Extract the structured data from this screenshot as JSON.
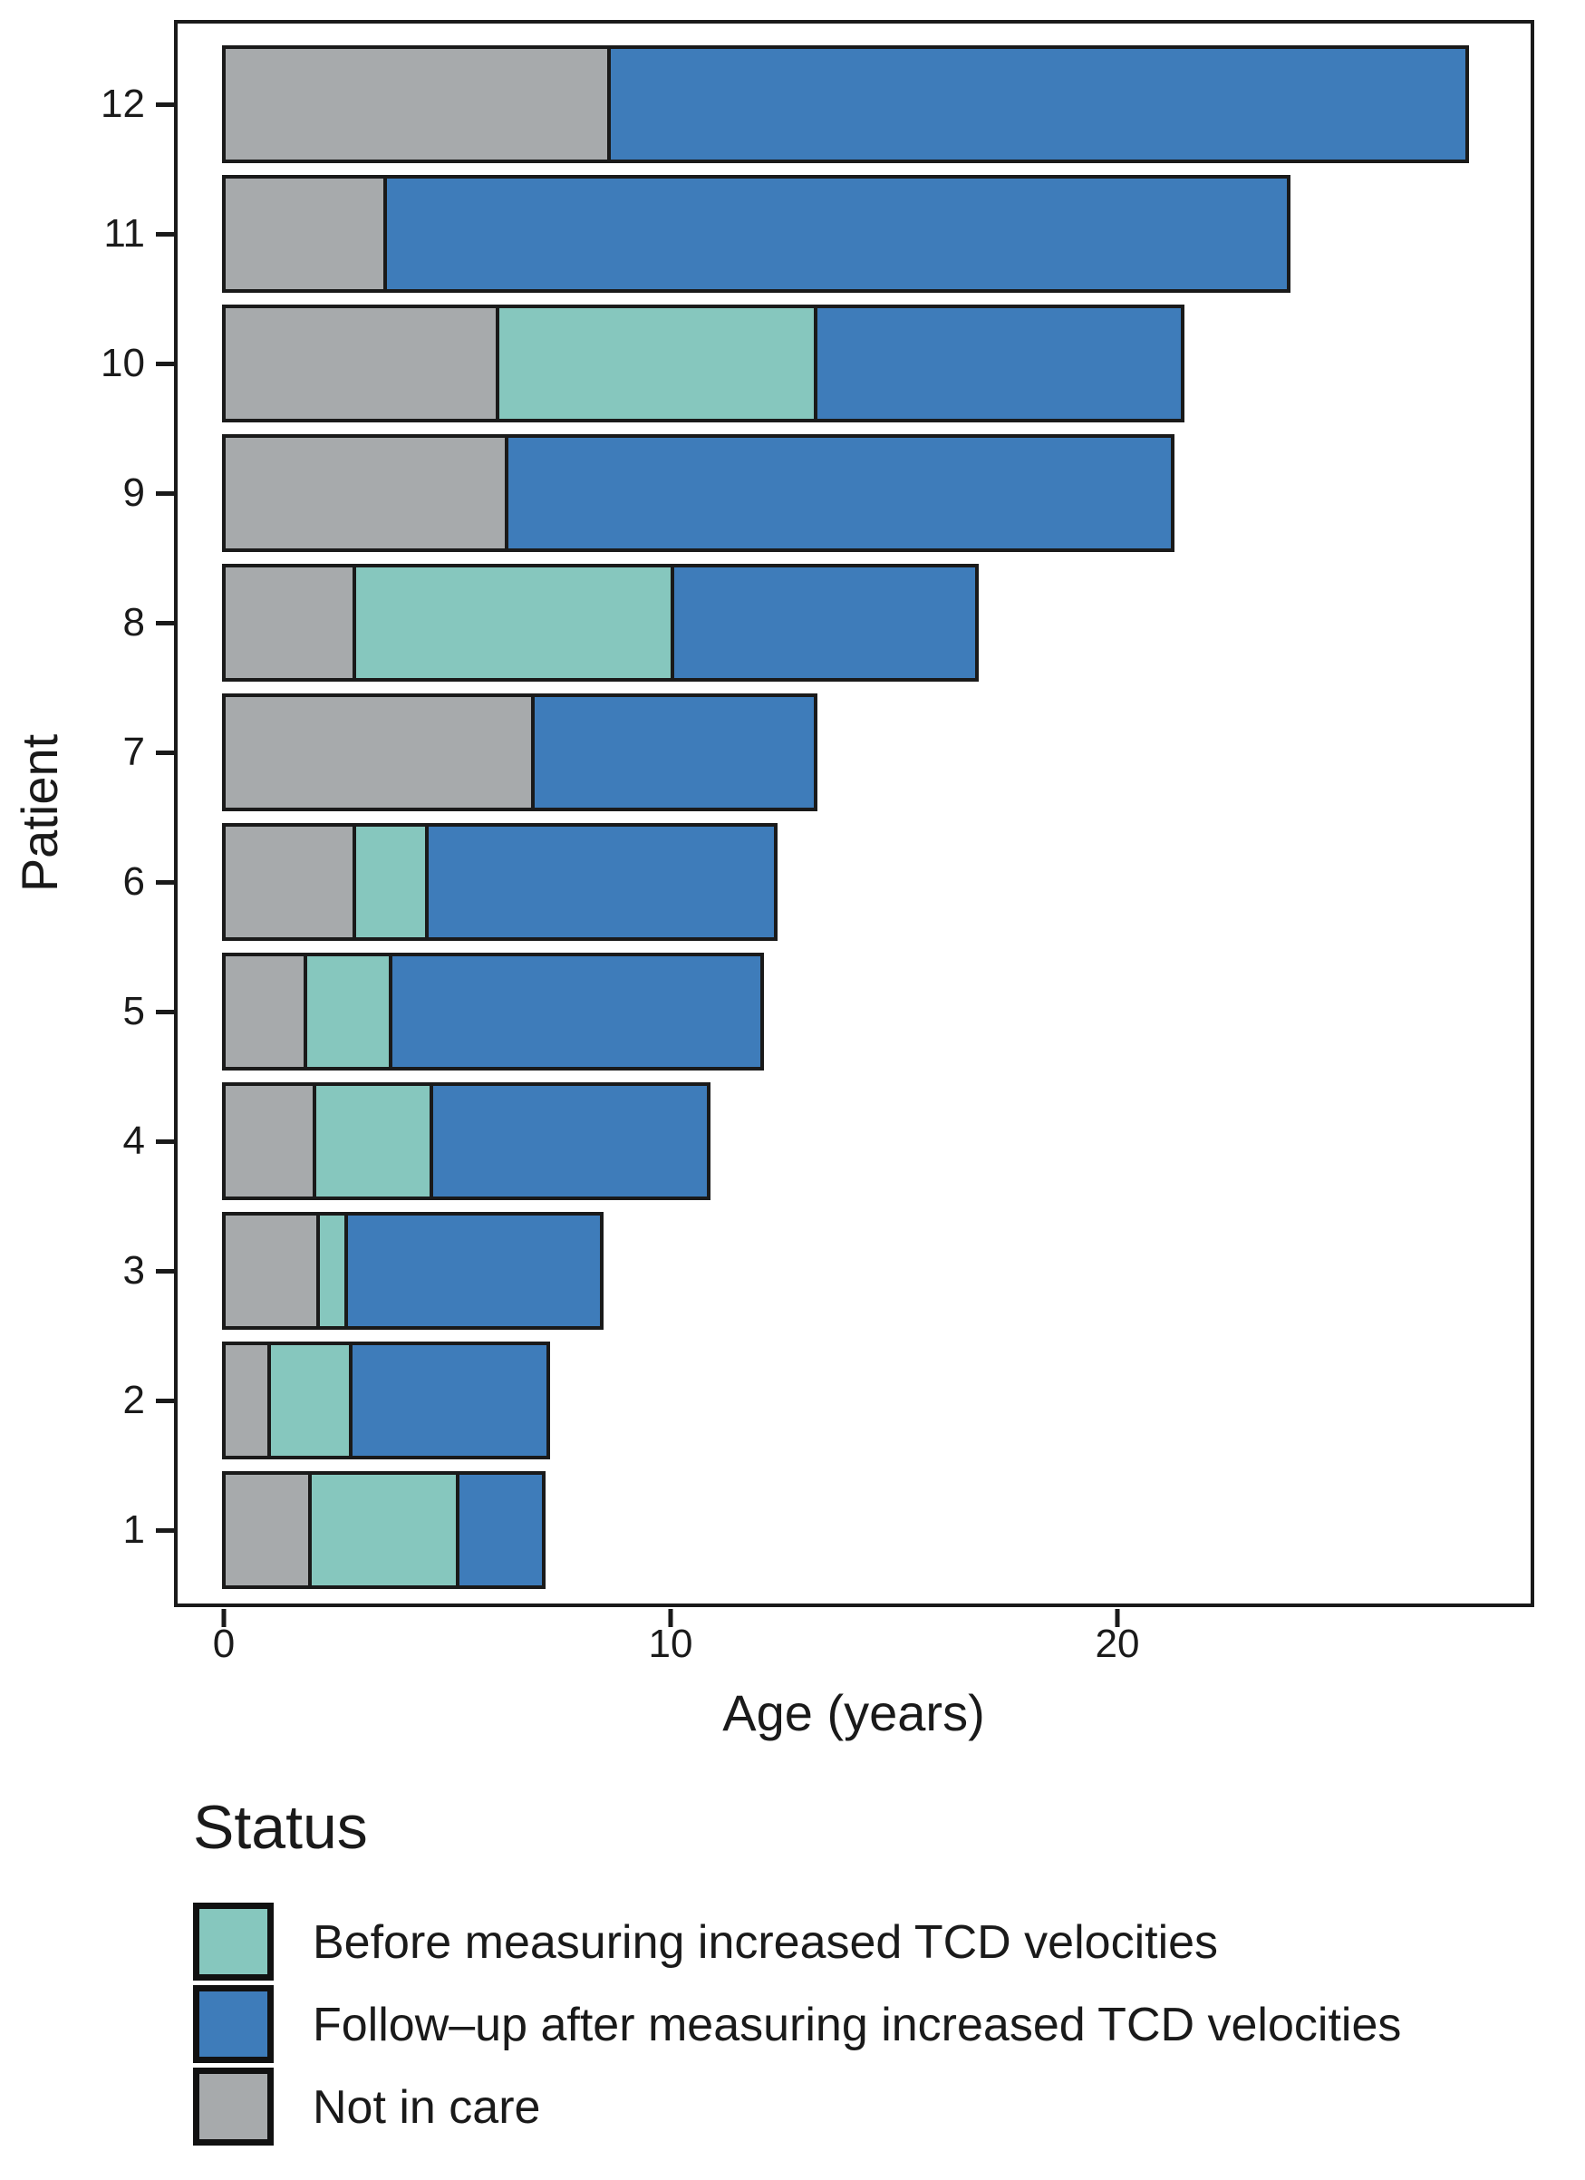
{
  "chart_data": {
    "type": "bar",
    "orientation": "horizontal-stacked",
    "xlabel": "Age (years)",
    "ylabel": "Patient",
    "x_ticks": [
      0,
      10,
      20
    ],
    "xlim": [
      0,
      29.3
    ],
    "grid": false,
    "legend_position": "bottom-left",
    "segments": [
      {
        "key": "not_in_care",
        "label": "Not in care",
        "color": "#A7AAAC"
      },
      {
        "key": "before_tcd",
        "label": "Before measuring increased TCD velocities",
        "color": "#86C7BE"
      },
      {
        "key": "follow_up",
        "label": "Follow–up after measuring increased TCD velocities",
        "color": "#3E7CBA"
      }
    ],
    "patients": [
      {
        "label": "12",
        "not_in_care": 8.7,
        "before_tcd": 0,
        "follow_up": 19.3,
        "total": 28.0
      },
      {
        "label": "11",
        "not_in_care": 3.7,
        "before_tcd": 0,
        "follow_up": 20.3,
        "total": 24.0
      },
      {
        "label": "10",
        "not_in_care": 6.2,
        "before_tcd": 7.2,
        "follow_up": 8.3,
        "total": 21.7
      },
      {
        "label": "9",
        "not_in_care": 6.4,
        "before_tcd": 0,
        "follow_up": 15.0,
        "total": 21.4
      },
      {
        "label": "8",
        "not_in_care": 3.0,
        "before_tcd": 7.2,
        "follow_up": 6.9,
        "total": 17.1
      },
      {
        "label": "7",
        "not_in_care": 7.0,
        "before_tcd": 0,
        "follow_up": 6.4,
        "total": 13.4
      },
      {
        "label": "6",
        "not_in_care": 3.0,
        "before_tcd": 1.7,
        "follow_up": 7.9,
        "total": 12.6
      },
      {
        "label": "5",
        "not_in_care": 1.9,
        "before_tcd": 2.0,
        "follow_up": 8.4,
        "total": 12.3
      },
      {
        "label": "4",
        "not_in_care": 2.1,
        "before_tcd": 2.7,
        "follow_up": 6.3,
        "total": 11.1
      },
      {
        "label": "3",
        "not_in_care": 2.2,
        "before_tcd": 0.7,
        "follow_up": 5.8,
        "total": 8.7
      },
      {
        "label": "2",
        "not_in_care": 1.1,
        "before_tcd": 1.9,
        "follow_up": 4.5,
        "total": 7.5
      },
      {
        "label": "1",
        "not_in_care": 2.0,
        "before_tcd": 3.4,
        "follow_up": 2.0,
        "total": 7.4
      }
    ],
    "legend": {
      "title": "Status",
      "entries": [
        {
          "label": "Before measuring increased TCD velocities",
          "color": "#86C7BE"
        },
        {
          "label": "Follow–up after measuring increased TCD velocities",
          "color": "#3E7CBA"
        },
        {
          "label": "Not in care",
          "color": "#A7AAAC"
        }
      ]
    }
  }
}
